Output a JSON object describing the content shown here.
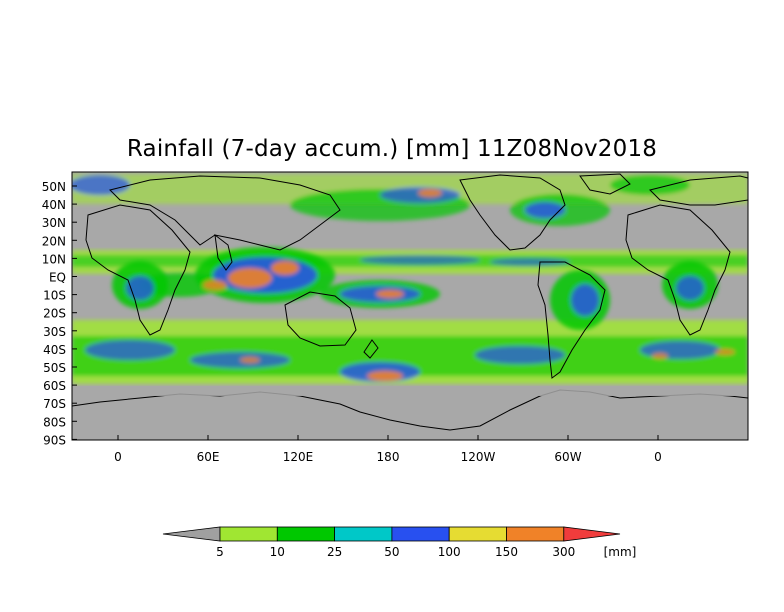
{
  "title": "Rainfall (7-day accum.) [mm] 11Z08Nov2018",
  "map": {
    "lat_labels": [
      "50N",
      "40N",
      "30N",
      "20N",
      "10N",
      "EQ",
      "10S",
      "20S",
      "30S",
      "40S",
      "50S",
      "60S",
      "70S",
      "80S",
      "90S"
    ],
    "lon_labels": [
      "0",
      "60E",
      "120E",
      "180",
      "120W",
      "60W",
      "0"
    ]
  },
  "colorbar": {
    "levels": [
      "5",
      "10",
      "25",
      "50",
      "100",
      "150",
      "300"
    ],
    "unit": "[mm]",
    "colors": {
      "below": "#a0a0a0",
      "5-10": "#a0e632",
      "10-25": "#00c800",
      "25-50": "#00c8c8",
      "50-100": "#2850f0",
      "100-150": "#e6dc32",
      "150-300": "#f08228",
      "above": "#f03c3c"
    }
  }
}
